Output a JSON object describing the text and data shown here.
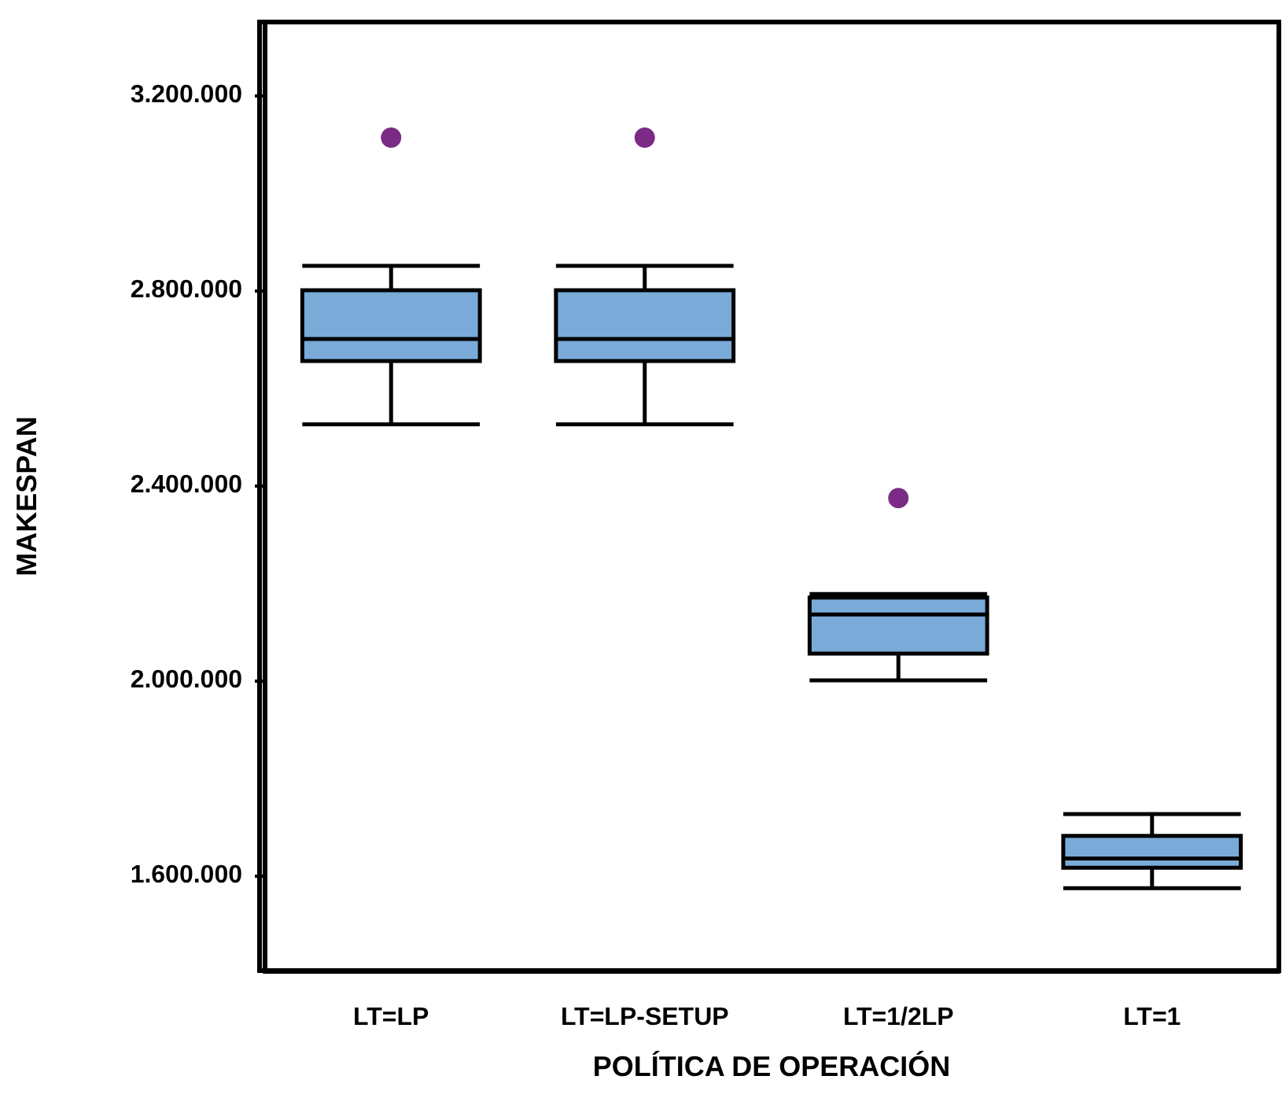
{
  "chart_data": {
    "type": "box",
    "xlabel": "POLÍTICA DE OPERACIÓN",
    "ylabel": "MAKESPAN",
    "categories": [
      "LT=LP",
      "LT=LP-SETUP",
      "LT=1/2LP",
      "LT=1"
    ],
    "ylim": [
      1405000,
      3350000
    ],
    "yticks": [
      {
        "value": 1600000,
        "label": "1.600.000"
      },
      {
        "value": 2000000,
        "label": "2.000.000"
      },
      {
        "value": 2400000,
        "label": "2.400.000"
      },
      {
        "value": 2800000,
        "label": "2.800.000"
      },
      {
        "value": 3200000,
        "label": "3.200.000"
      }
    ],
    "grid": false,
    "series": [
      {
        "type": "box",
        "color": "#7aaad8",
        "boxes": [
          {
            "low": 2525000,
            "q1": 2655000,
            "median": 2700000,
            "q3": 2800000,
            "high": 2850000
          },
          {
            "low": 2525000,
            "q1": 2655000,
            "median": 2700000,
            "q3": 2800000,
            "high": 2850000
          },
          {
            "low": 2000000,
            "q1": 2055000,
            "median": 2135000,
            "q3": 2170000,
            "high": 2177000
          },
          {
            "low": 1574000,
            "q1": 1616000,
            "median": 1635000,
            "q3": 1681000,
            "high": 1726000
          }
        ]
      },
      {
        "type": "scatter",
        "color": "#7b2a86",
        "marker": "circle",
        "x": [
          "LT=LP",
          "LT=LP-SETUP",
          "LT=1/2LP"
        ],
        "values": [
          3113000,
          3113000,
          2374000
        ]
      }
    ]
  }
}
